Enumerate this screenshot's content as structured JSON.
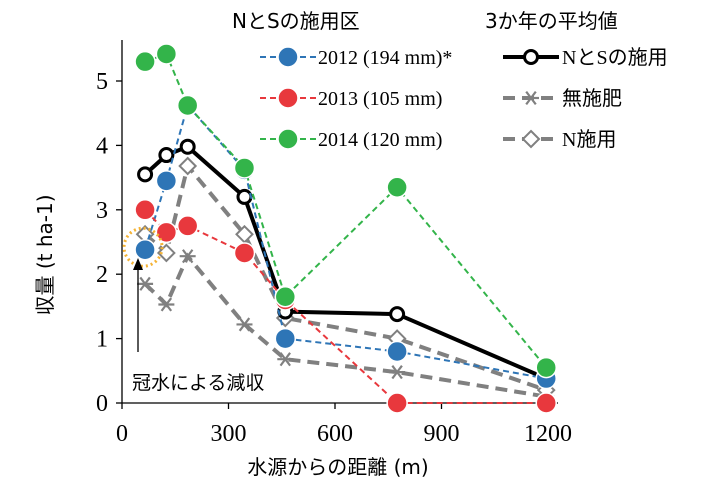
{
  "chart_data": {
    "type": "line",
    "xlabel": "水源からの距離 (m)",
    "ylabel": "収量 (t ha-1)",
    "xlim": [
      0,
      1200
    ],
    "ylim": [
      0,
      5.5
    ],
    "x_ticks": [
      0,
      300,
      600,
      900,
      1200
    ],
    "y_ticks": [
      0,
      1,
      2,
      3,
      4,
      5
    ],
    "legend_headers": [
      "NとSの施用区",
      "3か年の平均値"
    ],
    "annotation": "冠水による減収",
    "series": [
      {
        "name": "2012 (194 mm)*",
        "color": "#2e75b6",
        "style": "dashed-dot-filled",
        "points": [
          [
            65,
            2.38
          ],
          [
            125,
            3.45
          ],
          [
            185,
            4.62
          ],
          [
            345,
            3.62
          ],
          [
            460,
            1.0
          ],
          [
            775,
            0.8
          ],
          [
            1195,
            0.38
          ]
        ]
      },
      {
        "name": "2013 (105 mm)",
        "color": "#e8383d",
        "style": "dashed-dot-filled",
        "points": [
          [
            65,
            3.0
          ],
          [
            125,
            2.65
          ],
          [
            185,
            2.75
          ],
          [
            345,
            2.33
          ],
          [
            460,
            1.6
          ],
          [
            775,
            0.0
          ],
          [
            1195,
            0.0
          ]
        ]
      },
      {
        "name": "2014 (120 mm)",
        "color": "#33b44a",
        "style": "dashed-dot-filled",
        "points": [
          [
            65,
            5.3
          ],
          [
            125,
            5.42
          ],
          [
            185,
            4.62
          ],
          [
            345,
            3.65
          ],
          [
            460,
            1.65
          ],
          [
            775,
            3.35
          ],
          [
            1195,
            0.55
          ]
        ]
      },
      {
        "name": "NとSの施用",
        "color": "#000000",
        "style": "solid-open-circle",
        "points": [
          [
            65,
            3.55
          ],
          [
            125,
            3.85
          ],
          [
            185,
            3.98
          ],
          [
            345,
            3.2
          ],
          [
            460,
            1.42
          ],
          [
            775,
            1.38
          ],
          [
            1195,
            0.38
          ]
        ]
      },
      {
        "name": "無施肥",
        "color": "#808080",
        "style": "dashed-asterisk",
        "points": [
          [
            65,
            1.85
          ],
          [
            125,
            1.53
          ],
          [
            185,
            2.28
          ],
          [
            345,
            1.22
          ],
          [
            460,
            0.68
          ],
          [
            775,
            0.48
          ],
          [
            1195,
            0.1
          ]
        ]
      },
      {
        "name": "N施用",
        "color": "#808080",
        "style": "dashed-open-diamond",
        "points": [
          [
            65,
            2.62
          ],
          [
            125,
            2.33
          ],
          [
            185,
            3.68
          ],
          [
            345,
            2.62
          ],
          [
            460,
            1.32
          ],
          [
            775,
            1.0
          ],
          [
            1195,
            0.2
          ]
        ]
      }
    ]
  }
}
